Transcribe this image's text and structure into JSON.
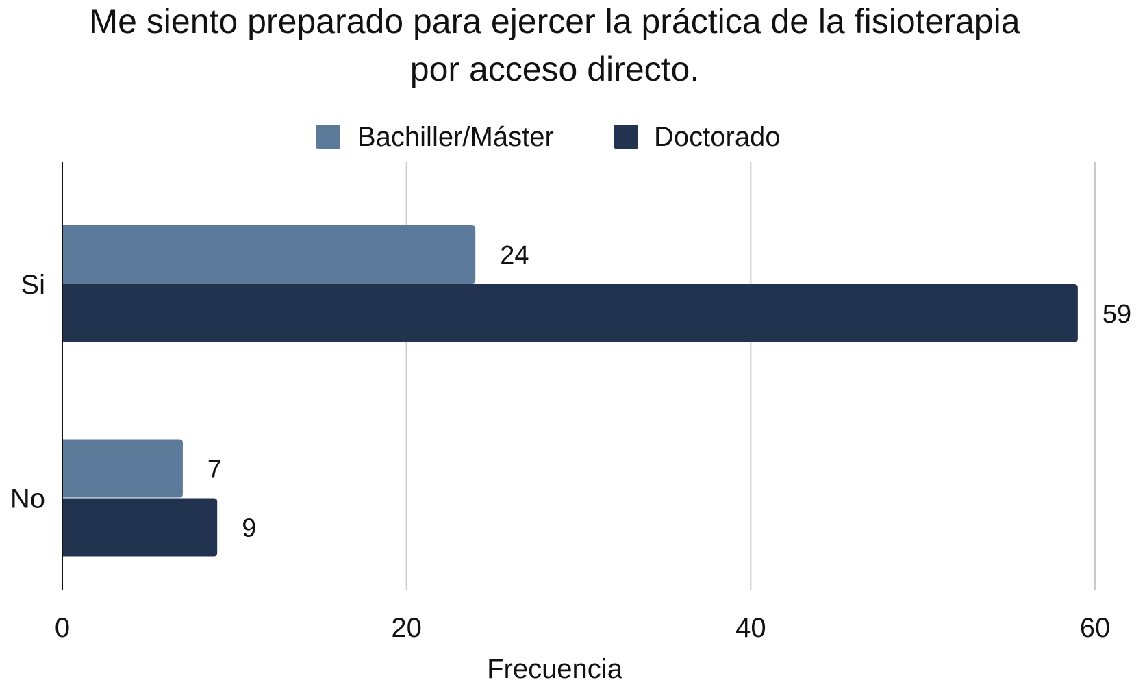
{
  "chart_data": {
    "type": "bar",
    "orientation": "horizontal",
    "title_lines": [
      "Me siento preparado para ejercer la práctica de la fisioterapia",
      "por acceso directo."
    ],
    "xlabel": "Frecuencia",
    "ylabel": "",
    "categories": [
      "Si",
      "No"
    ],
    "series": [
      {
        "name": "Bachiller/Máster",
        "values": [
          24,
          7
        ],
        "color": "#5c7a99"
      },
      {
        "name": "Doctorado",
        "values": [
          59,
          9
        ],
        "color": "#22334f"
      }
    ],
    "xlim": [
      0,
      60
    ],
    "xticks": [
      0,
      20,
      40,
      60
    ],
    "xtick_labels": [
      "0",
      "20",
      "40",
      "60"
    ],
    "grid": true,
    "legend_position": "top",
    "data_labels": true
  }
}
